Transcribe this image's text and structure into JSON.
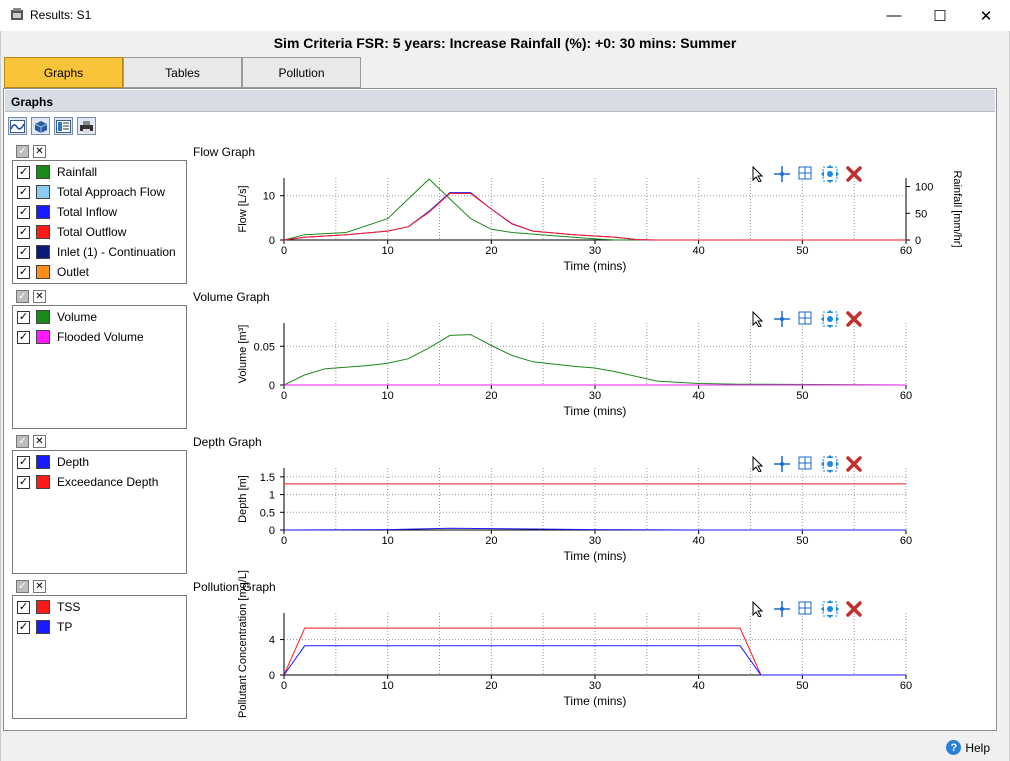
{
  "window": {
    "title": "Results: S1",
    "minimize": "—",
    "maximize": "☐",
    "close": "✕"
  },
  "sim_title": "Sim Criteria FSR: 5 years: Increase Rainfall (%): +0: 30 mins: Summer",
  "tabs": [
    {
      "label": "Graphs"
    },
    {
      "label": "Tables"
    },
    {
      "label": "Pollution"
    }
  ],
  "section_header": "Graphs",
  "help_label": "Help",
  "legends": [
    {
      "items": [
        {
          "label": "Rainfall",
          "color": "#1a8a1a"
        },
        {
          "label": "Total Approach Flow",
          "color": "#8ccaf2"
        },
        {
          "label": "Total Inflow",
          "color": "#1a1aff"
        },
        {
          "label": "Total Outflow",
          "color": "#ff1a1a"
        },
        {
          "label": "Inlet (1) - Continuation",
          "color": "#0a1a78"
        },
        {
          "label": "Outlet",
          "color": "#ff8c1a"
        }
      ]
    },
    {
      "items": [
        {
          "label": "Volume",
          "color": "#1a8a1a"
        },
        {
          "label": "Flooded Volume",
          "color": "#ff1aff"
        }
      ]
    },
    {
      "items": [
        {
          "label": "Depth",
          "color": "#1a1aff"
        },
        {
          "label": "Exceedance Depth",
          "color": "#ff1a1a"
        }
      ]
    },
    {
      "items": [
        {
          "label": "TSS",
          "color": "#ff1a1a"
        },
        {
          "label": "TP",
          "color": "#1a1aff"
        }
      ]
    }
  ],
  "chart_data": [
    {
      "type": "line",
      "title": "Flow Graph",
      "xlabel": "Time (mins)",
      "ylabel": "Flow [L/s]",
      "y2label": "Rainfall [mm/hr]",
      "xlim": [
        0,
        60
      ],
      "ylim": [
        0,
        14
      ],
      "y2lim": [
        0,
        116
      ],
      "xticks": [
        "0",
        "10",
        "20",
        "30",
        "40",
        "50",
        "60"
      ],
      "yticks": [
        "0",
        "10"
      ],
      "y2ticks": [
        "0",
        "50",
        "100"
      ],
      "series": [
        {
          "name": "Rainfall",
          "color": "#1a8a1a",
          "axis": "y2",
          "x": [
            0,
            2,
            6,
            10,
            14,
            18,
            20,
            22,
            26,
            30,
            32,
            60
          ],
          "y": [
            0,
            10,
            14,
            40,
            114,
            40,
            20,
            14,
            8,
            2,
            0,
            0
          ]
        },
        {
          "name": "Total Inflow",
          "color": "#1a1aff",
          "x": [
            0,
            2,
            6,
            10,
            12,
            14,
            16,
            18,
            20,
            22,
            24,
            28,
            32,
            34,
            36,
            60
          ],
          "y": [
            0,
            0.6,
            1.2,
            2.0,
            3.0,
            6.5,
            10.7,
            10.7,
            7.0,
            3.6,
            2.0,
            1.2,
            0.6,
            0.1,
            0,
            0
          ]
        },
        {
          "name": "Total Outflow",
          "color": "#ff1a1a",
          "x": [
            0,
            2,
            6,
            10,
            12,
            14,
            16,
            18,
            20,
            22,
            24,
            28,
            32,
            34,
            36,
            60
          ],
          "y": [
            0,
            0.6,
            1.2,
            2.0,
            3.0,
            6.3,
            10.5,
            10.5,
            7.0,
            3.7,
            2.0,
            1.2,
            0.6,
            0.1,
            0,
            0
          ]
        }
      ]
    },
    {
      "type": "line",
      "title": "Volume Graph",
      "xlabel": "Time (mins)",
      "ylabel": "Volume [m³]",
      "xlim": [
        0,
        60
      ],
      "ylim": [
        0,
        0.08
      ],
      "xticks": [
        "0",
        "10",
        "20",
        "30",
        "40",
        "50",
        "60"
      ],
      "yticks": [
        "0",
        "0.05"
      ],
      "series": [
        {
          "name": "Volume",
          "color": "#1a8a1a",
          "x": [
            0,
            2,
            4,
            8,
            10,
            12,
            14,
            16,
            18,
            20,
            22,
            24,
            28,
            30,
            32,
            36,
            40,
            44,
            60
          ],
          "y": [
            0,
            0.013,
            0.021,
            0.025,
            0.028,
            0.034,
            0.048,
            0.064,
            0.065,
            0.051,
            0.038,
            0.03,
            0.024,
            0.022,
            0.017,
            0.005,
            0.002,
            0.001,
            0
          ]
        },
        {
          "name": "Flooded Volume",
          "color": "#ff1aff",
          "x": [
            0,
            60
          ],
          "y": [
            0,
            0
          ]
        }
      ]
    },
    {
      "type": "line",
      "title": "Depth Graph",
      "xlabel": "Time (mins)",
      "ylabel": "Depth [m]",
      "xlim": [
        0,
        60
      ],
      "ylim": [
        0,
        1.75
      ],
      "xticks": [
        "0",
        "10",
        "20",
        "30",
        "40",
        "50",
        "60"
      ],
      "yticks": [
        "0",
        "0.5",
        "1",
        "1.5"
      ],
      "series": [
        {
          "name": "Exceedance Depth",
          "color": "#ff1a1a",
          "x": [
            0,
            60
          ],
          "y": [
            1.3,
            1.3
          ]
        },
        {
          "name": "Depth",
          "color": "#1a1aff",
          "x": [
            0,
            10,
            16,
            20,
            30,
            40,
            60
          ],
          "y": [
            0,
            0.01,
            0.05,
            0.04,
            0.01,
            0,
            0
          ]
        }
      ]
    },
    {
      "type": "line",
      "title": "Pollution Graph",
      "xlabel": "Time (mins)",
      "ylabel": "Pollutant Concentration [mg/L]",
      "xlim": [
        0,
        60
      ],
      "ylim": [
        0,
        7
      ],
      "xticks": [
        "0",
        "10",
        "20",
        "30",
        "40",
        "50",
        "60"
      ],
      "yticks": [
        "0",
        "4"
      ],
      "series": [
        {
          "name": "TSS",
          "color": "#ff1a1a",
          "x": [
            0,
            2,
            44,
            46,
            60
          ],
          "y": [
            0,
            5.3,
            5.3,
            0,
            0
          ]
        },
        {
          "name": "TP",
          "color": "#1a1aff",
          "x": [
            0,
            2,
            44,
            46,
            60
          ],
          "y": [
            0,
            3.3,
            3.3,
            0,
            0
          ]
        }
      ]
    }
  ]
}
